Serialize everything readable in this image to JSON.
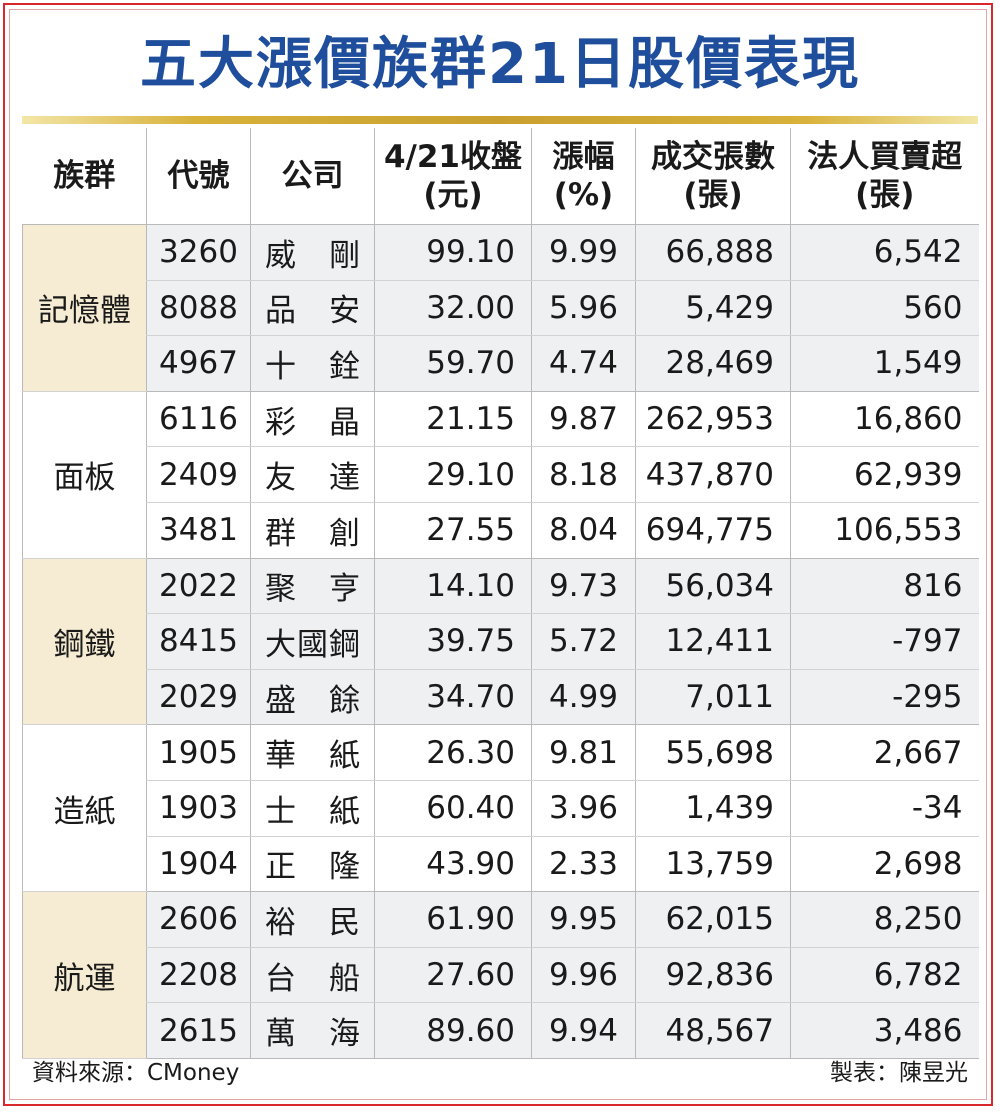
{
  "title": "五大漲價族群21日股價表現",
  "headers": {
    "group": "族群",
    "code": "代號",
    "company": "公司",
    "close_l1": "4/21收盤",
    "close_l2": "(元)",
    "chg_l1": "漲幅",
    "chg_l2": "(%)",
    "vol_l1": "成交張數",
    "vol_l2": "(張)",
    "inst_l1": "法人買賣超",
    "inst_l2": "(張)"
  },
  "groups": [
    {
      "name": "記憶體",
      "rows": [
        {
          "code": "3260",
          "company": "威剛",
          "close": "99.10",
          "change": "9.99",
          "volume": "66,888",
          "net": "6,542"
        },
        {
          "code": "8088",
          "company": "品安",
          "close": "32.00",
          "change": "5.96",
          "volume": "5,429",
          "net": "560"
        },
        {
          "code": "4967",
          "company": "十銓",
          "close": "59.70",
          "change": "4.74",
          "volume": "28,469",
          "net": "1,549"
        }
      ]
    },
    {
      "name": "面板",
      "rows": [
        {
          "code": "6116",
          "company": "彩晶",
          "close": "21.15",
          "change": "9.87",
          "volume": "262,953",
          "net": "16,860"
        },
        {
          "code": "2409",
          "company": "友達",
          "close": "29.10",
          "change": "8.18",
          "volume": "437,870",
          "net": "62,939"
        },
        {
          "code": "3481",
          "company": "群創",
          "close": "27.55",
          "change": "8.04",
          "volume": "694,775",
          "net": "106,553"
        }
      ]
    },
    {
      "name": "鋼鐵",
      "rows": [
        {
          "code": "2022",
          "company": "聚亨",
          "close": "14.10",
          "change": "9.73",
          "volume": "56,034",
          "net": "816"
        },
        {
          "code": "8415",
          "company": "大國鋼",
          "close": "39.75",
          "change": "5.72",
          "volume": "12,411",
          "net": "-797"
        },
        {
          "code": "2029",
          "company": "盛餘",
          "close": "34.70",
          "change": "4.99",
          "volume": "7,011",
          "net": "-295"
        }
      ]
    },
    {
      "name": "造紙",
      "rows": [
        {
          "code": "1905",
          "company": "華紙",
          "close": "26.30",
          "change": "9.81",
          "volume": "55,698",
          "net": "2,667"
        },
        {
          "code": "1903",
          "company": "士紙",
          "close": "60.40",
          "change": "3.96",
          "volume": "1,439",
          "net": "-34"
        },
        {
          "code": "1904",
          "company": "正隆",
          "close": "43.90",
          "change": "2.33",
          "volume": "13,759",
          "net": "2,698"
        }
      ]
    },
    {
      "name": "航運",
      "rows": [
        {
          "code": "2606",
          "company": "裕民",
          "close": "61.90",
          "change": "9.95",
          "volume": "62,015",
          "net": "8,250"
        },
        {
          "code": "2208",
          "company": "台船",
          "close": "27.60",
          "change": "9.96",
          "volume": "92,836",
          "net": "6,782"
        },
        {
          "code": "2615",
          "company": "萬海",
          "close": "89.60",
          "change": "9.94",
          "volume": "48,567",
          "net": "3,486"
        }
      ]
    }
  ],
  "footer": {
    "source": "資料來源：CMoney",
    "maker": "製表：陳昱光"
  }
}
